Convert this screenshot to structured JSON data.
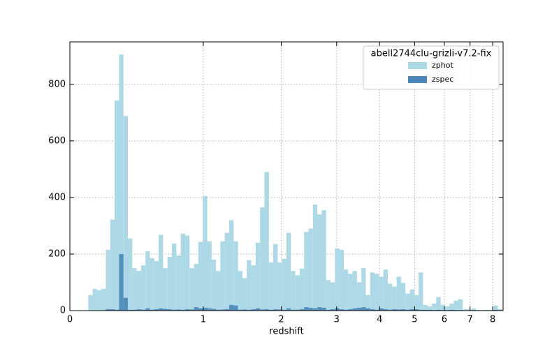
{
  "chart_data": {
    "type": "histogram",
    "xlabel": "redshift",
    "legend_title": "abell2744clu-grizli-v7.2-fix",
    "legend": "upper right",
    "xscale": "log1p",
    "grid": true,
    "xlim": [
      0,
      8.5
    ],
    "ylim": [
      0,
      950
    ],
    "xticks": [
      0,
      1,
      2,
      3,
      4,
      5,
      6,
      7,
      8
    ],
    "yticks": [
      0,
      200,
      400,
      600,
      800
    ],
    "bins": [
      0.1,
      0.1255,
      0.1515,
      0.1782,
      0.2055,
      0.2334,
      0.262,
      0.2912,
      0.3211,
      0.3517,
      0.383,
      0.415,
      0.4478,
      0.4813,
      0.5156,
      0.5507,
      0.5866,
      0.6234,
      0.661,
      0.6994,
      0.7388,
      0.7791,
      0.8203,
      0.8624,
      0.9056,
      0.9497,
      0.9948,
      1.041,
      1.0883,
      1.1367,
      1.1861,
      1.2368,
      1.2886,
      1.3416,
      1.3958,
      1.4513,
      1.5081,
      1.5662,
      1.6256,
      1.6864,
      1.7486,
      1.8123,
      1.8774,
      1.944,
      2.0122,
      2.082,
      2.1533,
      2.2264,
      2.3011,
      2.3775,
      2.4557,
      2.5358,
      2.6177,
      2.7014,
      2.7872,
      2.8749,
      2.9646,
      3.0564,
      3.1504,
      3.2465,
      3.3448,
      3.4454,
      3.5484,
      3.6537,
      3.7615,
      3.8717,
      3.9846,
      4.1,
      4.2181,
      4.3389,
      4.4626,
      4.5891,
      4.7185,
      4.8509,
      4.9864,
      5.125,
      5.2669,
      5.412,
      5.5605,
      5.7124,
      5.8678,
      6.0269,
      6.1896,
      6.3561,
      6.5264,
      6.7007,
      6.879,
      7.0615,
      7.2482,
      7.4392,
      7.6346,
      7.8346,
      8.0391,
      8.2485,
      8.4626
    ],
    "series": [
      {
        "name": "zphot",
        "color": "#add8e6",
        "values": [
          55,
          77,
          72,
          77,
          215,
          322,
          743,
          905,
          688,
          255,
          150,
          140,
          160,
          210,
          185,
          175,
          268,
          150,
          190,
          237,
          195,
          272,
          265,
          150,
          165,
          243,
          405,
          245,
          180,
          140,
          245,
          275,
          320,
          245,
          140,
          115,
          178,
          160,
          240,
          365,
          490,
          170,
          235,
          170,
          183,
          275,
          140,
          125,
          148,
          278,
          290,
          375,
          340,
          355,
          108,
          100,
          220,
          215,
          145,
          130,
          140,
          100,
          150,
          55,
          135,
          130,
          120,
          145,
          95,
          85,
          120,
          98,
          60,
          75,
          55,
          135,
          20,
          15,
          25,
          48,
          20,
          15,
          25,
          35,
          40,
          5,
          5,
          8,
          3,
          2,
          3,
          3,
          18,
          5
        ]
      },
      {
        "name": "zspec",
        "color": "#4a86b8",
        "values": [
          0,
          0,
          0,
          0,
          5,
          5,
          3,
          200,
          45,
          3,
          3,
          5,
          3,
          8,
          3,
          5,
          8,
          6,
          5,
          3,
          4,
          3,
          5,
          4,
          12,
          8,
          10,
          8,
          6,
          3,
          4,
          5,
          20,
          18,
          3,
          4,
          3,
          5,
          8,
          4,
          5,
          3,
          5,
          4,
          3,
          8,
          3,
          3,
          5,
          12,
          10,
          8,
          12,
          10,
          3,
          5,
          8,
          5,
          3,
          5,
          8,
          10,
          12,
          8,
          5,
          3,
          8,
          5,
          3,
          5,
          4,
          5,
          3,
          5,
          5,
          3,
          3,
          3,
          2,
          3,
          2,
          2,
          3,
          2,
          2,
          1,
          1,
          2,
          1,
          1,
          1,
          1,
          3,
          2
        ]
      }
    ]
  }
}
